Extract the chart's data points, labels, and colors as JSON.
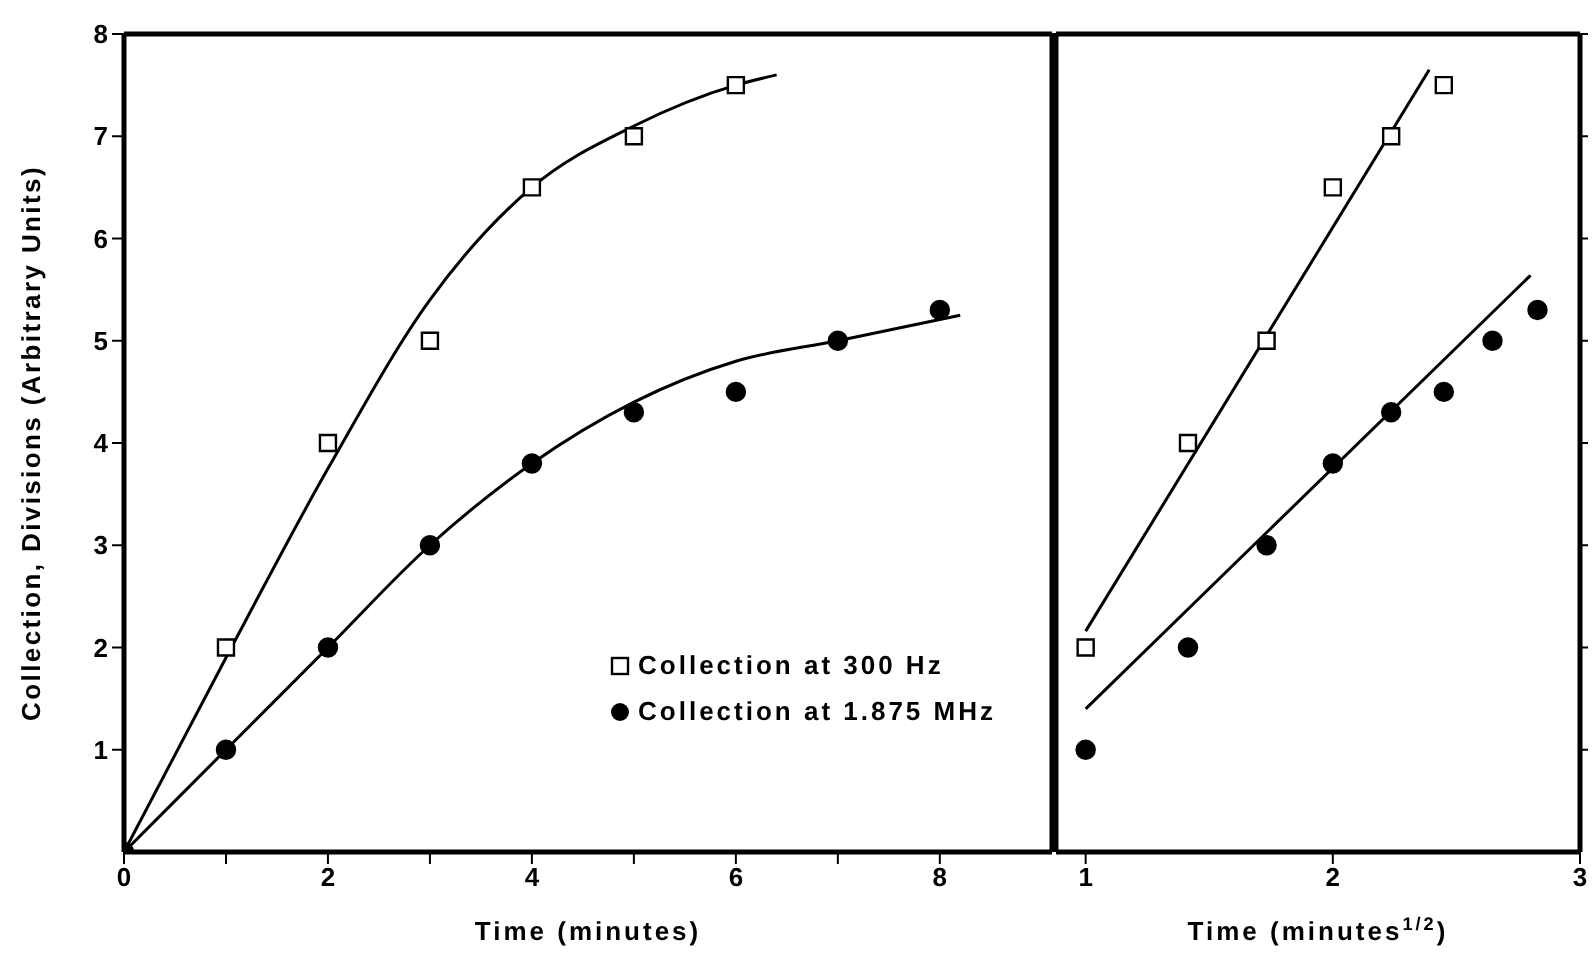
{
  "chart_data": [
    {
      "type": "scatter",
      "xlabel": "Time (minutes)",
      "ylabel": "Collection, Divisions (Arbitrary Units)",
      "xlim": [
        0,
        9.1
      ],
      "xticks": [
        0,
        {
          "value": 1,
          "label": null
        },
        2,
        {
          "value": 3,
          "label": null
        },
        4,
        {
          "value": 5,
          "label": null
        },
        6,
        {
          "value": 7,
          "label": null
        },
        8
      ],
      "ylim": [
        0,
        8
      ],
      "yticks": [
        1,
        2,
        3,
        4,
        5,
        6,
        7,
        8
      ],
      "legend": "bottom right",
      "series": [
        {
          "name": "Collection at 300 Hz",
          "marker": "square",
          "color": "#000000",
          "x": [
            1,
            2,
            3,
            4,
            5,
            6
          ],
          "values": [
            2,
            4,
            5,
            6.5,
            7,
            7.5
          ]
        },
        {
          "name": "Collection at 1.875 MHz",
          "marker": "circle",
          "color": "#000000",
          "x": [
            0,
            1,
            2,
            3,
            4,
            5,
            6,
            7,
            8
          ],
          "values": [
            0,
            1,
            2,
            3,
            3.8,
            4.3,
            4.5,
            5,
            5.3
          ]
        },
        {
          "type": "line",
          "marker": "none",
          "color": "#000000",
          "x": [
            0,
            1,
            2,
            3,
            4,
            5,
            6,
            6.4
          ],
          "values": [
            0,
            1.9,
            3.75,
            5.4,
            6.5,
            7.1,
            7.5,
            7.6
          ]
        },
        {
          "type": "line",
          "marker": "none",
          "color": "#000000",
          "x": [
            0,
            1,
            2,
            3,
            4,
            5,
            6,
            7,
            8.2
          ],
          "values": [
            0,
            1,
            2,
            3,
            3.8,
            4.4,
            4.8,
            5,
            5.25
          ]
        }
      ]
    },
    {
      "type": "scatter",
      "xlabel": "Time (minutes$^{1/2}$)",
      "xlim": [
        0.88,
        3
      ],
      "xticks": [
        1,
        2,
        3
      ],
      "ylim": [
        0,
        8
      ],
      "yticks": [
        1,
        2,
        3,
        4,
        5,
        6,
        7,
        8
      ],
      "tick_labels": "x",
      "series": [
        {
          "marker": "square",
          "color": "#000000",
          "x": [
            1,
            1.414,
            1.732,
            2,
            2.236,
            2.449
          ],
          "values": [
            2,
            4,
            5,
            6.5,
            7,
            7.5
          ]
        },
        {
          "marker": "circle",
          "color": "#000000",
          "x": [
            1,
            1.414,
            1.732,
            2,
            2.236,
            2.449,
            2.646,
            2.828
          ],
          "values": [
            1,
            2,
            3,
            3.8,
            4.3,
            4.5,
            5,
            5.3
          ]
        },
        {
          "type": "line",
          "marker": "none",
          "color": "#000000",
          "x": [
            1,
            2.39
          ],
          "values": [
            2.16,
            7.65
          ]
        },
        {
          "type": "line",
          "marker": "none",
          "color": "#000000",
          "x": [
            1,
            2.8
          ],
          "values": [
            1.4,
            5.64
          ]
        }
      ]
    }
  ]
}
